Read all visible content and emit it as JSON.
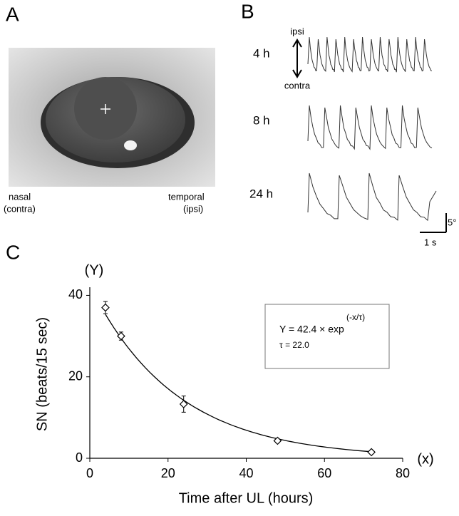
{
  "panels": {
    "a": "A",
    "b": "B",
    "c": "C"
  },
  "eye_image": {
    "nasal": "nasal",
    "nasal_sub": "(contra)",
    "temporal": "temporal",
    "temporal_sub": "(ipsi)"
  },
  "traces": {
    "ipsi": "ipsi",
    "contra": "contra",
    "rows": [
      "4 h",
      "8 h",
      "24 h"
    ],
    "scale_time": "1 s",
    "scale_angle": "5°"
  },
  "chart_data": {
    "type": "scatter",
    "x_label": "Time after UL (hours)",
    "y_label": "SN (beats/15 sec)",
    "x_marker": "(x)",
    "y_marker": "(Y)",
    "xlim": [
      0,
      80
    ],
    "xticks": [
      0,
      20,
      40,
      60,
      80
    ],
    "ylim": [
      0,
      42
    ],
    "yticks": [
      0,
      20,
      40
    ],
    "series": [
      {
        "color": "#000000",
        "x": [
          4,
          8,
          24,
          48,
          72
        ],
        "values": [
          37,
          30,
          13.3,
          4.3,
          1.5
        ],
        "errors": [
          1.5,
          1,
          2,
          0.5,
          0.4
        ]
      }
    ],
    "fit": {
      "amplitude": 42.4,
      "tau": 22.0
    },
    "annotation": {
      "equation": "Y = 42.4 × exp",
      "exponent": "(-x/τ)",
      "tau_text": "τ = 22.0"
    }
  }
}
